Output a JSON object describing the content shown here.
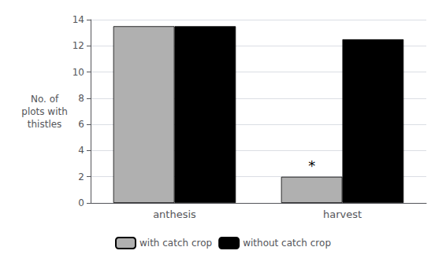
{
  "chart_data": {
    "type": "bar",
    "categories": [
      "anthesis",
      "harvest"
    ],
    "series": [
      {
        "name": "with catch crop",
        "color": "#b0b0b0",
        "values": [
          13.5,
          2
        ]
      },
      {
        "name": "without catch crop",
        "color": "#000000",
        "values": [
          13.5,
          12.5
        ]
      }
    ],
    "ylabel": "No. of\nplots with\nthistles",
    "ylim": [
      0,
      14
    ],
    "yticks": [
      0,
      2,
      4,
      6,
      8,
      10,
      12,
      14
    ],
    "grid": true,
    "legend": "bottom",
    "annotations": [
      {
        "text": "*",
        "category": "harvest",
        "series": "with catch crop"
      }
    ]
  }
}
